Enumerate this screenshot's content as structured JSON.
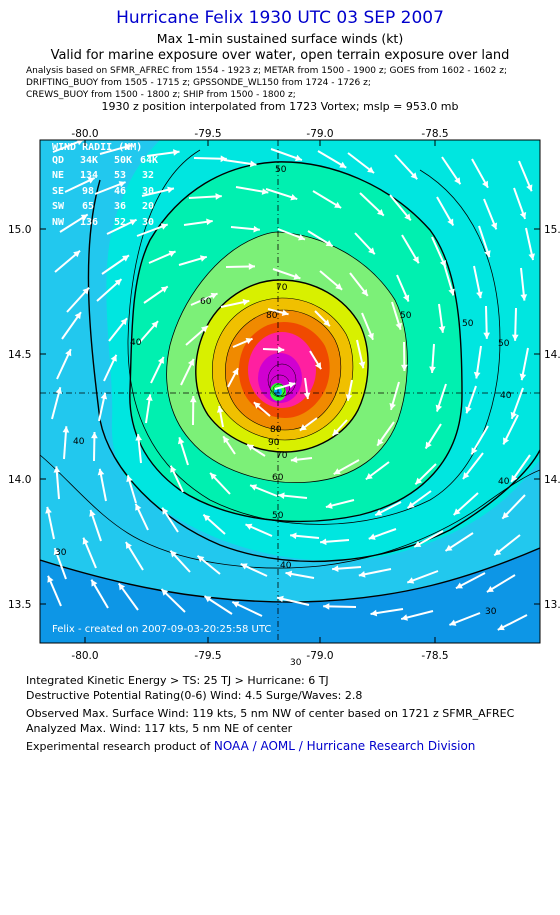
{
  "header": {
    "title": "Hurricane Felix 1930 UTC 03 SEP 2007",
    "subtitle": "Max 1-min sustained surface winds (kt)",
    "valid_line": "Valid for marine exposure over water, open terrain exposure over land",
    "source_lines": [
      "Analysis based on   SFMR_AFREC from 1554 - 1923 z;   METAR from 1500 - 1900 z;  GOES from 1602 - 1602 z;",
      "DRIFTING_BUOY from 1505 - 1715 z;  GPSSONDE_WL150 from 1724 - 1726 z;",
      "CREWS_BUOY from 1500 - 1800 z;  SHIP from 1500 - 1800 z;"
    ],
    "interp_line": "1930 z position interpolated from 1723 Vortex; mslp = 953.0 mb"
  },
  "map": {
    "lon_ticks": [
      "-80.0",
      "-79.5",
      "-79.0",
      "-78.5"
    ],
    "lat_ticks": [
      "15.0",
      "14.5",
      "14.0",
      "13.5"
    ],
    "contour_labels": [
      "30",
      "30",
      "30",
      "40",
      "40",
      "40",
      "40",
      "50",
      "50",
      "50",
      "50",
      "60",
      "70",
      "80",
      "80",
      "90",
      "70",
      "60",
      "50",
      "40"
    ],
    "wind_radii": {
      "title": "WIND RADII (NM)",
      "header": [
        "QD",
        "34K",
        "50K",
        "64K"
      ],
      "rows": [
        [
          "NE",
          "134",
          "53",
          "32"
        ],
        [
          "SE",
          "98",
          "46",
          "30"
        ],
        [
          "SW",
          "65",
          "36",
          "20"
        ],
        [
          "NW",
          "136",
          "52",
          "30"
        ]
      ]
    },
    "credit": "Felix  - created on 2007-09-03-20:25:58 UTC",
    "colors": {
      "band_30": "#0d96e6",
      "band_40": "#22c8ee",
      "band_50": "#00e6e0",
      "band_60": "#00f0b0",
      "band_70": "#7cf078",
      "band_80": "#d8f000",
      "band_90": "#f0c000",
      "band_100": "#f08a00",
      "band_110": "#f04a00",
      "band_120": "#ff20a0",
      "band_130": "#d000d0",
      "arrow": "#ffffff",
      "contour": "#000000"
    }
  },
  "footer": {
    "ike": "Integrated Kinetic Energy > TS: 25 TJ   > Hurricane: 6 TJ",
    "dpr": "Destructive Potential Rating(0-6)   Wind: 4.5 Surge/Waves: 2.8",
    "obs_max": "Observed Max. Surface Wind: 119 kts, 5 nm NW of center based on 1721 z SFMR_AFREC",
    "analyzed_max": "Analyzed Max. Wind: 117 kts, 5 nm NE of center",
    "credit_prefix": "Experimental research product of",
    "credit_link": "NOAA / AOML / Hurricane Research Division"
  }
}
